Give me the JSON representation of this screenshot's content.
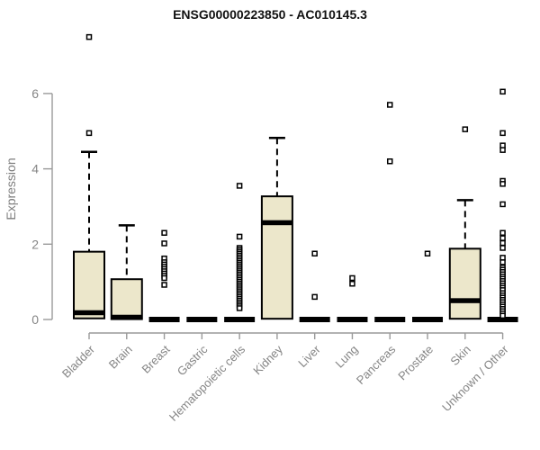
{
  "chart_data": {
    "type": "boxplot",
    "title": "ENSG00000223850 - AC010145.3",
    "ylabel": "Expression",
    "ylim": [
      0,
      6
    ],
    "yticks": [
      0,
      2,
      4,
      6
    ],
    "grid": false,
    "legend": "none",
    "box_fill": "#ECE7CB",
    "box_stroke": "#000000",
    "axis_color": "#9a9a9a",
    "label_color": "#858585",
    "categories": [
      "Bladder",
      "Brain",
      "Breast",
      "Gastric",
      "Hematopoietic cells",
      "Kidney",
      "Liver",
      "Lung",
      "Pancreas",
      "Prostate",
      "Skin",
      "Unknown / Other"
    ],
    "boxes": [
      {
        "category": "Bladder",
        "q1": 0.03,
        "median": 0.18,
        "q3": 1.8,
        "whisker_low": 0,
        "whisker_high": 4.45,
        "outliers": [
          7.5,
          4.95
        ]
      },
      {
        "category": "Brain",
        "q1": 0.01,
        "median": 0.06,
        "q3": 1.07,
        "whisker_low": 0,
        "whisker_high": 2.5,
        "outliers": []
      },
      {
        "category": "Breast",
        "q1": 0,
        "median": 0,
        "q3": 0,
        "whisker_low": 0,
        "whisker_high": 0,
        "outliers": [
          2.3,
          2.02,
          1.62,
          1.52,
          1.46,
          1.4,
          1.34,
          1.28,
          1.22,
          1.16,
          1.1,
          0.92
        ]
      },
      {
        "category": "Gastric",
        "q1": 0,
        "median": 0,
        "q3": 0,
        "whisker_low": 0,
        "whisker_high": 0,
        "outliers": []
      },
      {
        "category": "Hematopoietic cells",
        "q1": 0,
        "median": 0,
        "q3": 0,
        "whisker_low": 0,
        "whisker_high": 0,
        "outliers": [
          3.55,
          2.2,
          1.9,
          1.85,
          1.8,
          1.75,
          1.7,
          1.65,
          1.6,
          1.55,
          1.5,
          1.45,
          1.4,
          1.35,
          1.3,
          1.25,
          1.2,
          1.15,
          1.1,
          1.05,
          1.0,
          0.95,
          0.9,
          0.85,
          0.8,
          0.75,
          0.7,
          0.65,
          0.6,
          0.55,
          0.5,
          0.45,
          0.4,
          0.35,
          0.3
        ]
      },
      {
        "category": "Kidney",
        "q1": 0.02,
        "median": 2.57,
        "q3": 3.27,
        "whisker_low": 0,
        "whisker_high": 4.82,
        "outliers": []
      },
      {
        "category": "Liver",
        "q1": 0,
        "median": 0,
        "q3": 0,
        "whisker_low": 0,
        "whisker_high": 0,
        "outliers": [
          1.75,
          0.6
        ]
      },
      {
        "category": "Lung",
        "q1": 0,
        "median": 0,
        "q3": 0,
        "whisker_low": 0,
        "whisker_high": 0,
        "outliers": [
          1.1,
          0.95
        ]
      },
      {
        "category": "Pancreas",
        "q1": 0,
        "median": 0,
        "q3": 0,
        "whisker_low": 0,
        "whisker_high": 0,
        "outliers": [
          5.7,
          4.2
        ]
      },
      {
        "category": "Prostate",
        "q1": 0,
        "median": 0,
        "q3": 0,
        "whisker_low": 0,
        "whisker_high": 0,
        "outliers": [
          1.75
        ]
      },
      {
        "category": "Skin",
        "q1": 0.02,
        "median": 0.5,
        "q3": 1.88,
        "whisker_low": 0,
        "whisker_high": 3.17,
        "outliers": [
          5.05
        ]
      },
      {
        "category": "Unknown / Other",
        "q1": 0,
        "median": 0,
        "q3": 0,
        "whisker_low": 0,
        "whisker_high": 0,
        "outliers": [
          6.05,
          4.95,
          4.62,
          4.5,
          3.68,
          3.6,
          3.06,
          2.3,
          2.16,
          2.03,
          1.9,
          1.64,
          1.52,
          1.38,
          1.32,
          1.26,
          1.2,
          1.14,
          1.08,
          1.02,
          0.96,
          0.9,
          0.84,
          0.78,
          0.7,
          0.64,
          0.58,
          0.52,
          0.46,
          0.4,
          0.34,
          0.28,
          0.22,
          0.16,
          0.1
        ]
      }
    ]
  }
}
